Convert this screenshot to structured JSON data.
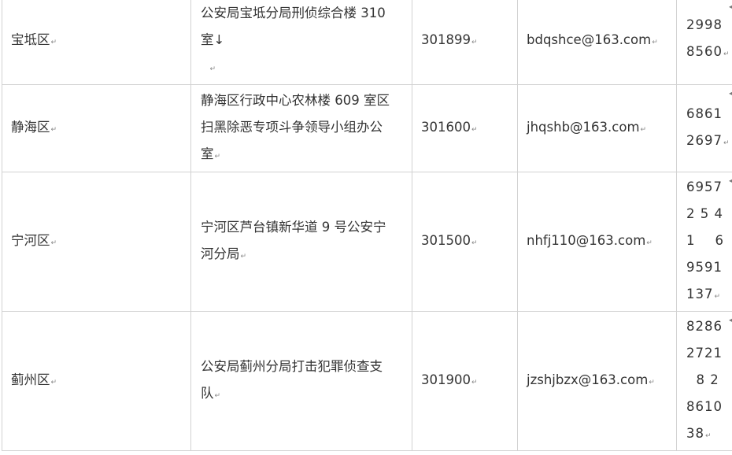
{
  "rows": [
    {
      "district": "宝坻区",
      "address": "公安局宝坻分局刑侦综合楼 310\n室↓\n  ",
      "postcode": "301899",
      "email": "bdqshce@163.com",
      "phone": "2998\n8560"
    },
    {
      "district": "静海区",
      "address": "静海区行政中心农林楼 609 室区\n扫黑除恶专项斗争领导小组办公\n室",
      "postcode": "301600",
      "email": "jhqshb@163.com",
      "phone": "6861\n2697"
    },
    {
      "district": "宁河区",
      "address": "宁河区芦台镇新华道 9 号公安宁\n河分局",
      "postcode": "301500",
      "email": "nhfj110@163.com",
      "phone": "6957\n2 5 4\n1    6\n9591\n137"
    },
    {
      "district": "蓟州区",
      "address": "公安局蓟州分局打击犯罪侦查支\n队",
      "postcode": "301900",
      "email": "jzshjbzx@163.com",
      "phone": "8286\n2721\n  8 2\n8610\n38"
    }
  ]
}
